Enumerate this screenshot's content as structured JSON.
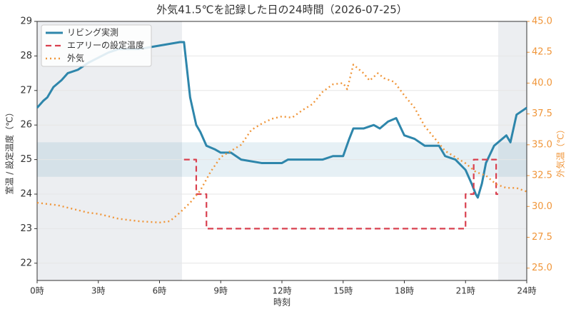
{
  "chart_data": {
    "type": "line",
    "title": "外気41.5℃を記録した日の24時間（2026-07-25）",
    "x_label": "時刻",
    "y_label": "室温 / 設定温度（℃）",
    "y2_label": "外気温（℃）",
    "xlim": [
      0,
      24
    ],
    "xticks": [
      {
        "value": 0,
        "label": "0時"
      },
      {
        "value": 3,
        "label": "3時"
      },
      {
        "value": 6,
        "label": "6時"
      },
      {
        "value": 9,
        "label": "9時"
      },
      {
        "value": 12,
        "label": "12時"
      },
      {
        "value": 15,
        "label": "15時"
      },
      {
        "value": 18,
        "label": "18時"
      },
      {
        "value": 21,
        "label": "21時"
      },
      {
        "value": 24,
        "label": "24時"
      }
    ],
    "ylim": [
      21.5,
      29
    ],
    "yticks": [
      22,
      23,
      24,
      25,
      26,
      27,
      28,
      29
    ],
    "y2lim": [
      24,
      45
    ],
    "y2ticks": [
      {
        "value": 25,
        "label": "25.0"
      },
      {
        "value": 27.5,
        "label": "27.5"
      },
      {
        "value": 30,
        "label": "30.0"
      },
      {
        "value": 32.5,
        "label": "32.5"
      },
      {
        "value": 35,
        "label": "35.0"
      },
      {
        "value": 37.5,
        "label": "37.5"
      },
      {
        "value": 40,
        "label": "40.0"
      },
      {
        "value": 42.5,
        "label": "42.5"
      },
      {
        "value": 45,
        "label": "45.0"
      }
    ],
    "grid": true,
    "legend": "upper left",
    "night_spans": [
      [
        0,
        7.1
      ],
      [
        22.6,
        24
      ]
    ],
    "comfort_band": [
      24.5,
      25.5
    ],
    "series": [
      {
        "name": "リビング実測",
        "color": "#2e86ab",
        "style": "solid",
        "x": [
          0,
          0.3,
          0.5,
          0.8,
          1.2,
          1.5,
          2,
          2.5,
          3,
          3.5,
          4,
          5,
          6,
          7,
          7.2,
          7.5,
          7.8,
          8,
          8.3,
          8.7,
          9,
          9.5,
          10,
          11,
          12,
          12.3,
          14,
          14.5,
          15,
          15.3,
          15.5,
          16,
          16.5,
          16.8,
          17.2,
          17.6,
          18,
          18.5,
          19,
          19.7,
          20,
          20.5,
          21,
          21.3,
          21.5,
          21.6,
          21.8,
          22,
          22.4,
          22.8,
          23,
          23.2,
          23.5,
          24
        ],
        "values": [
          26.5,
          26.7,
          26.8,
          27.1,
          27.3,
          27.5,
          27.6,
          27.8,
          27.95,
          28.1,
          28.2,
          28.2,
          28.3,
          28.4,
          28.4,
          26.8,
          26.0,
          25.8,
          25.4,
          25.3,
          25.2,
          25.2,
          25.0,
          24.9,
          24.9,
          25.0,
          25.0,
          25.1,
          25.1,
          25.6,
          25.9,
          25.9,
          26.0,
          25.9,
          26.1,
          26.2,
          25.7,
          25.6,
          25.4,
          25.4,
          25.1,
          25.0,
          24.7,
          24.3,
          24.0,
          23.9,
          24.3,
          24.9,
          25.4,
          25.6,
          25.7,
          25.5,
          26.3,
          26.5
        ]
      },
      {
        "name": "エアリーの設定温度",
        "color": "#d9404f",
        "style": "dashed",
        "x": [
          7.2,
          7.8,
          7.8,
          8.3,
          8.3,
          21.0,
          21.0,
          21.4,
          21.4,
          22.5,
          22.5,
          22.6
        ],
        "values": [
          25,
          25,
          24,
          24,
          23,
          23,
          24,
          24,
          25,
          25,
          24,
          24
        ]
      },
      {
        "name": "外気",
        "color": "#f0963a",
        "style": "dotted",
        "axis": "y2",
        "x": [
          0,
          1,
          2,
          2.5,
          3,
          4,
          5,
          6,
          6.5,
          7,
          7.5,
          8,
          8.5,
          9,
          9.5,
          10,
          10.5,
          11,
          11.5,
          12,
          12.5,
          13,
          13.5,
          14,
          14.5,
          15,
          15.2,
          15.5,
          16,
          16.3,
          16.7,
          17,
          17.5,
          18,
          18.5,
          19,
          19.5,
          20,
          20.5,
          21,
          21.5,
          22,
          22.5,
          23,
          23.5,
          24
        ],
        "values": [
          30.3,
          30.1,
          29.7,
          29.5,
          29.4,
          29.0,
          28.8,
          28.7,
          28.8,
          29.5,
          30.3,
          31.3,
          32.8,
          34.0,
          34.5,
          35.0,
          36.2,
          36.7,
          37.1,
          37.3,
          37.2,
          37.8,
          38.3,
          39.3,
          39.9,
          40.0,
          39.5,
          41.5,
          40.8,
          40.2,
          40.8,
          40.4,
          40.1,
          39.0,
          38.0,
          36.5,
          35.5,
          34.5,
          34.0,
          33.5,
          32.8,
          32.5,
          31.8,
          31.5,
          31.5,
          31.2
        ]
      }
    ]
  }
}
